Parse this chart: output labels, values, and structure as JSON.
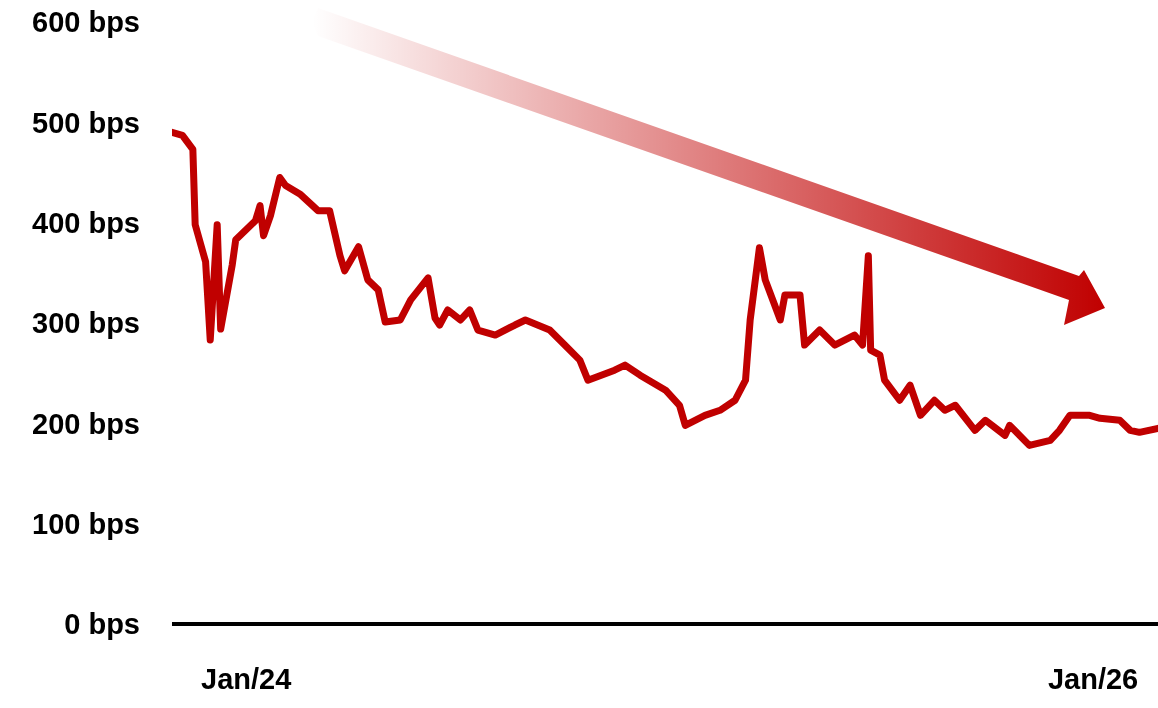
{
  "chart_data": {
    "type": "line",
    "x": [
      "2023-10-29",
      "2023-11-07",
      "2023-11-16",
      "2023-11-18",
      "2023-11-27",
      "2023-12-01",
      "2023-12-07",
      "2023-12-10",
      "2023-12-20",
      "2023-12-23",
      "2024-01-09",
      "2024-01-13",
      "2024-01-16",
      "2024-01-22",
      "2024-01-30",
      "2024-02-04",
      "2024-02-17",
      "2024-03-03",
      "2024-03-13",
      "2024-03-22",
      "2024-03-26",
      "2024-04-07",
      "2024-04-15",
      "2024-04-24",
      "2024-04-30",
      "2024-05-13",
      "2024-05-22",
      "2024-06-06",
      "2024-06-12",
      "2024-06-16",
      "2024-06-23",
      "2024-07-04",
      "2024-07-12",
      "2024-07-19",
      "2024-08-03",
      "2024-08-20",
      "2024-08-29",
      "2024-09-19",
      "2024-10-02",
      "2024-10-15",
      "2024-10-22",
      "2024-11-14",
      "2024-11-23",
      "2024-12-06",
      "2024-12-28",
      "2025-01-09",
      "2025-01-14",
      "2025-01-31",
      "2025-02-13",
      "2025-02-26",
      "2025-03-07",
      "2025-03-11",
      "2025-03-19",
      "2025-03-24",
      "2025-04-06",
      "2025-04-10",
      "2025-04-23",
      "2025-04-27",
      "2025-05-10",
      "2025-05-23",
      "2025-06-09",
      "2025-06-16",
      "2025-06-21",
      "2025-06-23",
      "2025-07-01",
      "2025-07-05",
      "2025-07-18",
      "2025-07-27",
      "2025-08-05",
      "2025-08-17",
      "2025-08-26",
      "2025-09-04",
      "2025-09-21",
      "2025-09-30",
      "2025-10-17",
      "2025-10-21",
      "2025-11-07",
      "2025-11-25",
      "2025-12-03",
      "2025-12-12",
      "2025-12-29",
      "2026-01-07",
      "2026-01-24",
      "2026-02-02",
      "2026-02-10",
      "2026-02-26"
    ],
    "series": [
      {
        "color": "#c00000",
        "values": [
          490,
          487,
          473,
          398,
          361,
          283,
          398,
          294,
          358,
          383,
          402,
          417,
          387,
          407,
          445,
          437,
          428,
          412,
          412,
          367,
          352,
          376,
          343,
          333,
          301,
          303,
          323,
          345,
          305,
          298,
          313,
          303,
          313,
          293,
          288,
          298,
          303,
          293,
          278,
          263,
          243,
          253,
          258,
          248,
          233,
          218,
          198,
          208,
          213,
          223,
          243,
          303,
          375,
          343,
          303,
          328,
          328,
          278,
          293,
          278,
          288,
          278,
          367,
          273,
          268,
          243,
          223,
          238,
          208,
          223,
          213,
          218,
          193,
          203,
          188,
          198,
          178,
          183,
          193,
          208,
          208,
          205,
          203,
          193,
          191,
          195
        ]
      }
    ],
    "xlim": [
      "2023-10-29",
      "2026-02-26"
    ],
    "xticks": [
      {
        "value": "2024-01-01",
        "label": "Jan/24"
      },
      {
        "value": "2026-01-01",
        "label": "Jan/26"
      }
    ],
    "ylim": [
      0,
      600
    ],
    "yticks": [
      {
        "value": 0,
        "label": "0 bps"
      },
      {
        "value": 100,
        "label": "100 bps"
      },
      {
        "value": 200,
        "label": "200 bps"
      },
      {
        "value": 300,
        "label": "300 bps"
      },
      {
        "value": 400,
        "label": "400 bps"
      },
      {
        "value": 500,
        "label": "500 bps"
      },
      {
        "value": 600,
        "label": "600 bps"
      }
    ]
  }
}
